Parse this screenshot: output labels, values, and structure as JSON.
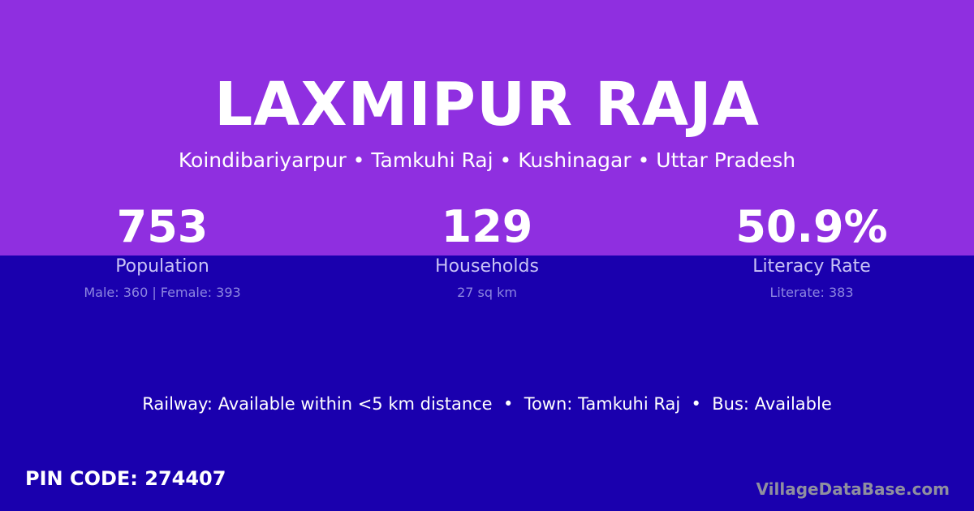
{
  "colors": {
    "top": "#8f2fe0",
    "bottom": "#1a00ae"
  },
  "title": "LAXMIPUR RAJA",
  "subtitle": "Koindibariyarpur • Tamkuhi Raj • Kushinagar • Uttar Pradesh",
  "stats": [
    {
      "value": "753",
      "label": "Population",
      "detail": "Male: 360 | Female: 393"
    },
    {
      "value": "129",
      "label": "Households",
      "detail": "27 sq km"
    },
    {
      "value": "50.9%",
      "label": "Literacy Rate",
      "detail": "Literate: 383"
    }
  ],
  "amenities": "Railway: Available within <5 km distance  •  Town: Tamkuhi Raj  •  Bus: Available",
  "pin": "PIN CODE: 274407",
  "brand": "VillageDataBase.com"
}
